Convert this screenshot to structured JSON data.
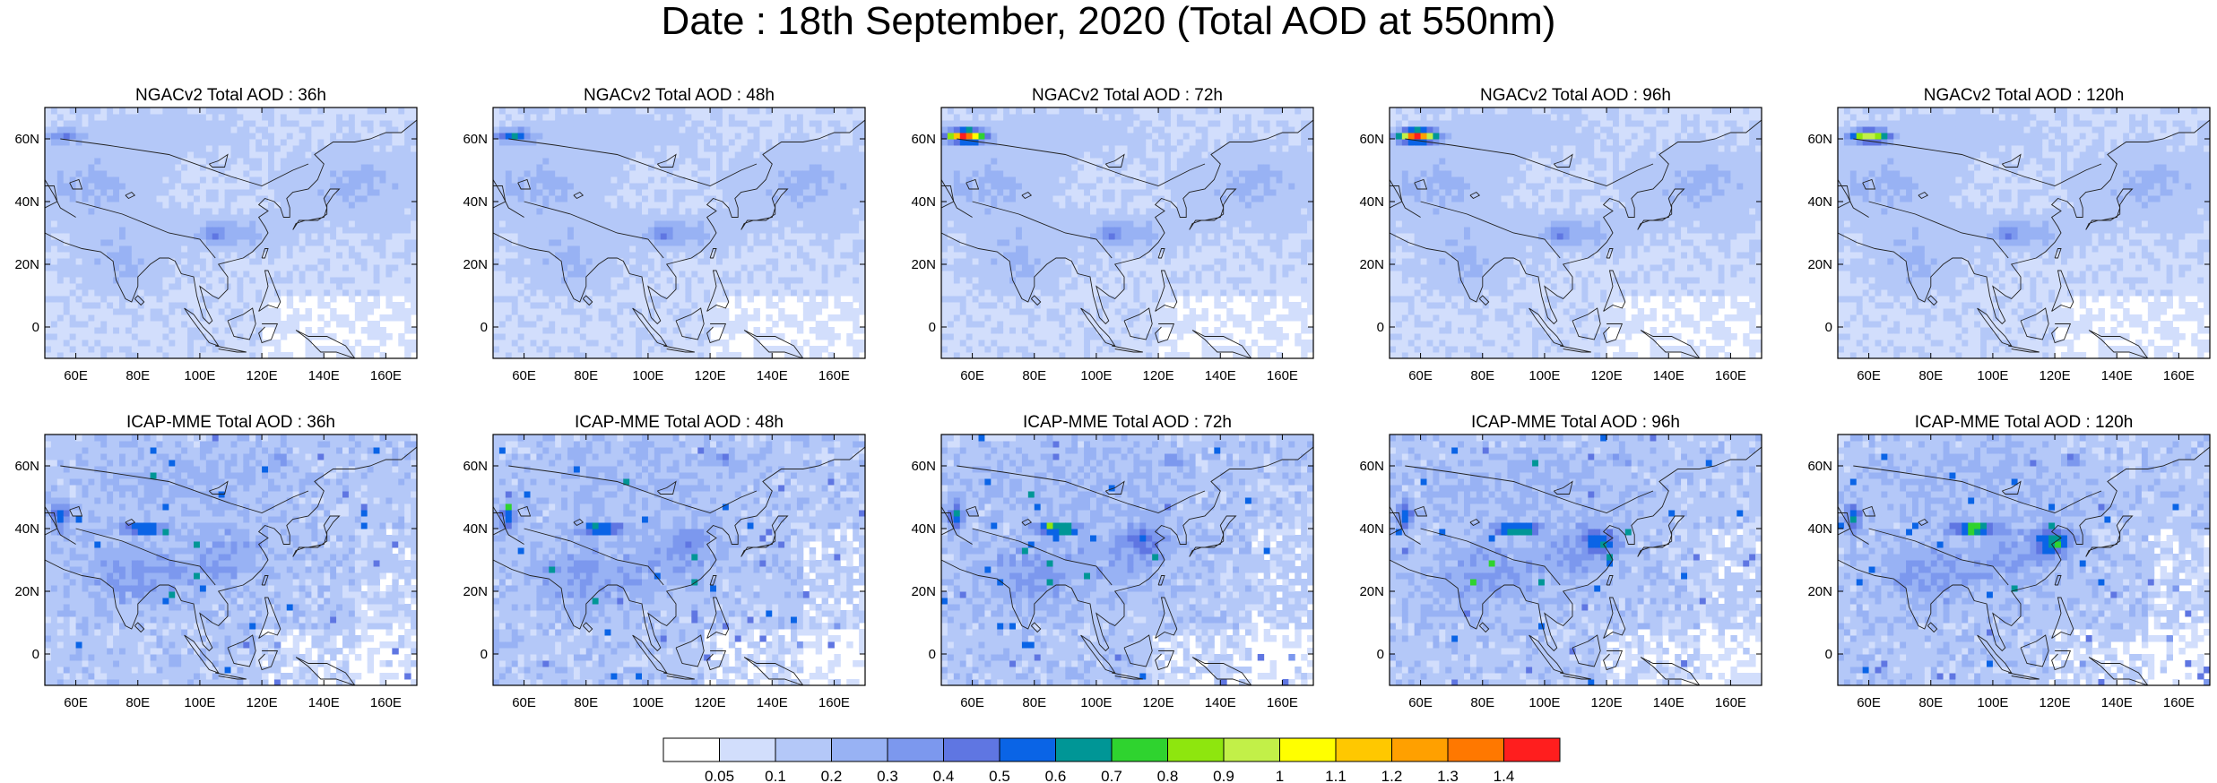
{
  "figure": {
    "title": "Date : 18th September, 2020 (Total AOD at 550nm)"
  },
  "axes": {
    "lat_labels": [
      "60N",
      "40N",
      "20N",
      "0"
    ],
    "lat_values": [
      60,
      40,
      20,
      0
    ],
    "lon_labels": [
      "60E",
      "80E",
      "100E",
      "120E",
      "140E",
      "160E"
    ],
    "lon_values": [
      60,
      80,
      100,
      120,
      140,
      160
    ],
    "lat_range": [
      -10,
      70
    ],
    "lon_range": [
      50,
      170
    ]
  },
  "panels": [
    {
      "title": "NGACv2 Total AOD : 36h",
      "model": "ngac",
      "lead": 36
    },
    {
      "title": "NGACv2 Total AOD : 48h",
      "model": "ngac",
      "lead": 48
    },
    {
      "title": "NGACv2 Total AOD : 72h",
      "model": "ngac",
      "lead": 72
    },
    {
      "title": "NGACv2 Total AOD : 96h",
      "model": "ngac",
      "lead": 96
    },
    {
      "title": "NGACv2 Total AOD : 120h",
      "model": "ngac",
      "lead": 120
    },
    {
      "title": "ICAP-MME Total AOD : 36h",
      "model": "icap",
      "lead": 36
    },
    {
      "title": "ICAP-MME Total AOD : 48h",
      "model": "icap",
      "lead": 48
    },
    {
      "title": "ICAP-MME Total AOD : 72h",
      "model": "icap",
      "lead": 72
    },
    {
      "title": "ICAP-MME Total AOD : 96h",
      "model": "icap",
      "lead": 96
    },
    {
      "title": "ICAP-MME Total AOD : 120h",
      "model": "icap",
      "lead": 120
    }
  ],
  "colorbar": {
    "labels": [
      "0.05",
      "0.1",
      "0.2",
      "0.3",
      "0.4",
      "0.5",
      "0.6",
      "0.7",
      "0.8",
      "0.9",
      "1",
      "1.1",
      "1.2",
      "1.3",
      "1.4"
    ],
    "colors": [
      "#ffffff",
      "#d2defc",
      "#b4c8f8",
      "#98b2f4",
      "#7c98ee",
      "#5f76e2",
      "#0a64e6",
      "#009696",
      "#2fd32f",
      "#8ee60e",
      "#c2f048",
      "#ffff00",
      "#ffc800",
      "#ffa000",
      "#ff7800",
      "#ff1e1e"
    ]
  }
}
